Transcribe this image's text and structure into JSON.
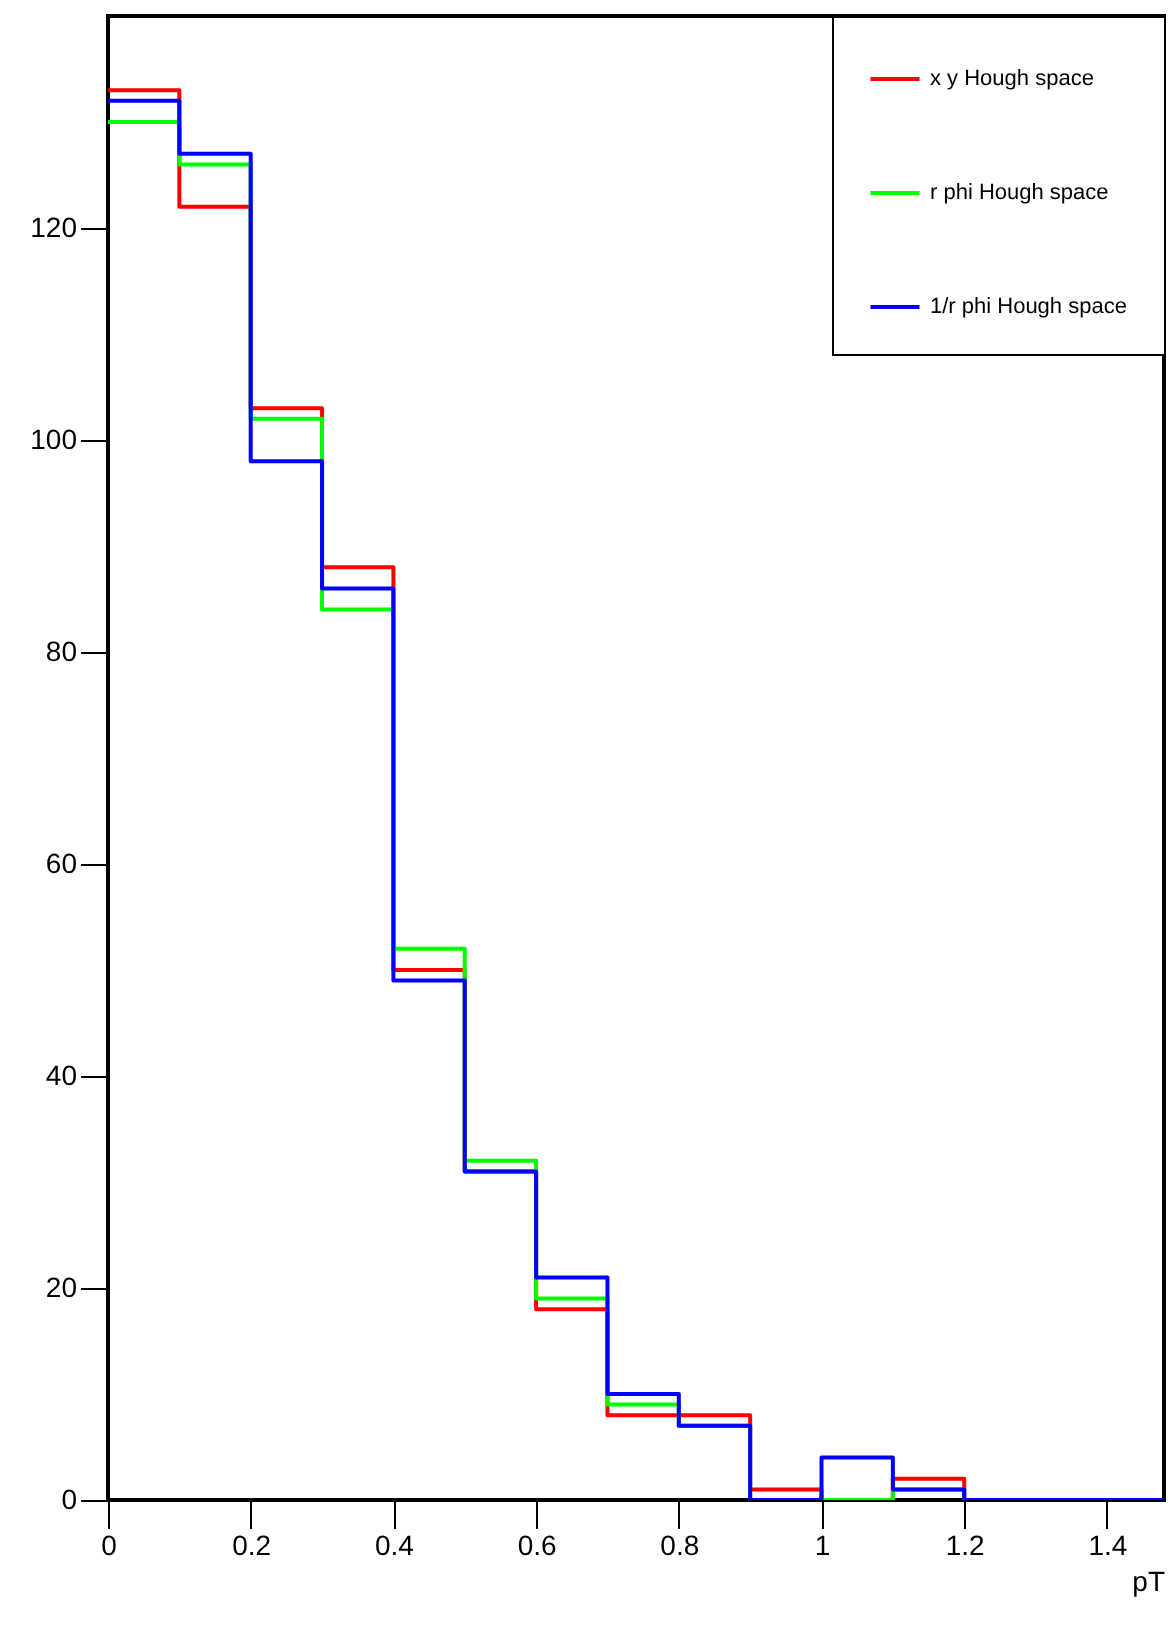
{
  "chart_data": {
    "type": "histogram",
    "xlabel": "pT",
    "bins": [
      0,
      0.1,
      0.2,
      0.3,
      0.4,
      0.5,
      0.6,
      0.7,
      0.8,
      0.9,
      1.0,
      1.1,
      1.2,
      1.3,
      1.4,
      1.5
    ],
    "series": [
      {
        "name": "x y Hough space",
        "color": "#ff0000",
        "values": [
          133,
          122,
          103,
          88,
          50,
          31,
          18,
          8,
          8,
          1,
          0,
          2,
          0,
          0,
          0
        ]
      },
      {
        "name": "r phi Hough space",
        "color": "#00ff00",
        "values": [
          130,
          126,
          102,
          84,
          52,
          32,
          19,
          9,
          7,
          0,
          0,
          1,
          0,
          0,
          0
        ]
      },
      {
        "name": "1/r phi Hough space",
        "color": "#0000ff",
        "values": [
          132,
          127,
          98,
          86,
          49,
          31,
          21,
          10,
          7,
          0,
          4,
          1,
          0,
          0,
          0
        ]
      }
    ],
    "xlim": [
      0,
      1.48
    ],
    "ylim": [
      0,
      140
    ],
    "xticks": [
      0,
      0.2,
      0.4,
      0.6,
      0.8,
      1,
      1.2,
      1.4
    ],
    "yticks": [
      0,
      20,
      40,
      60,
      80,
      100,
      120
    ],
    "legend": "top right",
    "grid": false
  }
}
